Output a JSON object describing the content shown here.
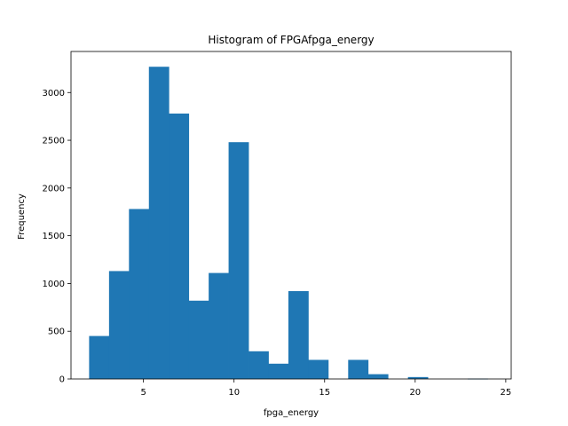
{
  "chart_data": {
    "type": "bar",
    "title": "Histogram of FPGAfpga_energy",
    "xlabel": "fpga_energy",
    "ylabel": "Frequency",
    "xlim": [
      1.0,
      25.3
    ],
    "ylim": [
      0,
      3430
    ],
    "xticks": [
      5,
      10,
      15,
      20,
      25
    ],
    "yticks": [
      0,
      500,
      1000,
      1500,
      2000,
      2500,
      3000
    ],
    "bins": [
      {
        "x0": 2.0,
        "x1": 3.1,
        "count": 450
      },
      {
        "x0": 3.1,
        "x1": 4.2,
        "count": 1130
      },
      {
        "x0": 4.2,
        "x1": 5.3,
        "count": 1780
      },
      {
        "x0": 5.3,
        "x1": 6.4,
        "count": 3270
      },
      {
        "x0": 6.4,
        "x1": 7.5,
        "count": 2780
      },
      {
        "x0": 7.5,
        "x1": 8.6,
        "count": 820
      },
      {
        "x0": 8.6,
        "x1": 9.7,
        "count": 1110
      },
      {
        "x0": 9.7,
        "x1": 10.8,
        "count": 2480
      },
      {
        "x0": 10.8,
        "x1": 11.9,
        "count": 290
      },
      {
        "x0": 11.9,
        "x1": 13.0,
        "count": 160
      },
      {
        "x0": 13.0,
        "x1": 14.1,
        "count": 920
      },
      {
        "x0": 14.1,
        "x1": 15.2,
        "count": 200
      },
      {
        "x0": 15.2,
        "x1": 16.3,
        "count": 0
      },
      {
        "x0": 16.3,
        "x1": 17.4,
        "count": 200
      },
      {
        "x0": 17.4,
        "x1": 18.5,
        "count": 50
      },
      {
        "x0": 18.5,
        "x1": 19.6,
        "count": 0
      },
      {
        "x0": 19.6,
        "x1": 20.7,
        "count": 20
      },
      {
        "x0": 20.7,
        "x1": 21.8,
        "count": 0
      },
      {
        "x0": 21.8,
        "x1": 22.9,
        "count": 0
      },
      {
        "x0": 22.9,
        "x1": 24.0,
        "count": 3
      }
    ],
    "bar_color": "#1f77b4",
    "grid": false,
    "legend": "none"
  }
}
